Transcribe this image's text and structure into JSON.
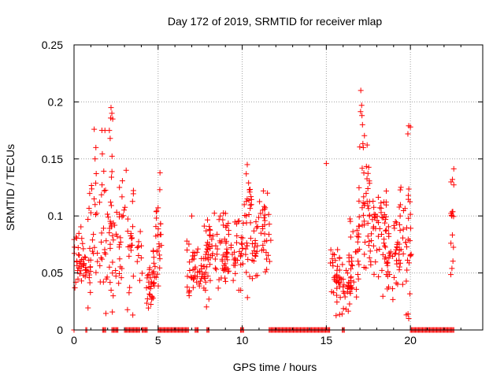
{
  "chart_data": {
    "type": "scatter",
    "title": "Day 172 of 2019, SRMTID for receiver mlap",
    "xlabel": "GPS time / hours",
    "ylabel": "SRMTID / TECUs",
    "xlim": [
      0,
      24.3
    ],
    "ylim": [
      0,
      0.25
    ],
    "xticks": [
      0,
      5,
      10,
      15,
      20
    ],
    "xtick_labels": [
      "0",
      "5",
      "10",
      "15",
      "20"
    ],
    "yticks": [
      0,
      0.05,
      0.1,
      0.15,
      0.2,
      0.25
    ],
    "ytick_labels": [
      "0",
      "0.05",
      "0.1",
      "0.15",
      "0.2",
      "0.25"
    ],
    "grid": true,
    "marker": "+",
    "color": "#ff0000",
    "clusters": [
      {
        "x": [
          0.0,
          0.6
        ],
        "y_mean": 0.062,
        "y_sd": 0.013,
        "n": 28
      },
      {
        "x": [
          0.4,
          1.0
        ],
        "y_mean": 0.05,
        "y_sd": 0.01,
        "n": 18
      },
      {
        "x": [
          0.8,
          1.6
        ],
        "y_mean": 0.085,
        "y_sd": 0.028,
        "n": 30
      },
      {
        "x": [
          1.6,
          2.3
        ],
        "y_mean": 0.1,
        "y_sd": 0.035,
        "n": 40
      },
      {
        "x": [
          2.2,
          3.0
        ],
        "y_mean": 0.08,
        "y_sd": 0.028,
        "n": 30
      },
      {
        "x": [
          3.0,
          3.6
        ],
        "y_mean": 0.07,
        "y_sd": 0.025,
        "n": 22
      },
      {
        "x": [
          3.6,
          4.1
        ],
        "y_mean": 0.07,
        "y_sd": 0.015,
        "n": 10
      },
      {
        "x": [
          4.3,
          4.8
        ],
        "y_mean": 0.038,
        "y_sd": 0.01,
        "n": 30
      },
      {
        "x": [
          4.7,
          5.2
        ],
        "y_mean": 0.07,
        "y_sd": 0.02,
        "n": 30
      },
      {
        "x": [
          6.7,
          8.0
        ],
        "y_mean": 0.055,
        "y_sd": 0.014,
        "n": 60
      },
      {
        "x": [
          7.8,
          9.2
        ],
        "y_mean": 0.068,
        "y_sd": 0.018,
        "n": 60
      },
      {
        "x": [
          8.8,
          10.0
        ],
        "y_mean": 0.07,
        "y_sd": 0.015,
        "n": 45
      },
      {
        "x": [
          10.0,
          11.0
        ],
        "y_mean": 0.075,
        "y_sd": 0.022,
        "n": 45
      },
      {
        "x": [
          10.2,
          10.6
        ],
        "y_mean": 0.12,
        "y_sd": 0.01,
        "n": 10
      },
      {
        "x": [
          11.0,
          11.7
        ],
        "y_mean": 0.085,
        "y_sd": 0.018,
        "n": 30
      },
      {
        "x": [
          15.2,
          15.8
        ],
        "y_mean": 0.055,
        "y_sd": 0.015,
        "n": 25
      },
      {
        "x": [
          15.6,
          16.5
        ],
        "y_mean": 0.038,
        "y_sd": 0.01,
        "n": 40
      },
      {
        "x": [
          16.3,
          17.0
        ],
        "y_mean": 0.065,
        "y_sd": 0.02,
        "n": 30
      },
      {
        "x": [
          16.9,
          17.6
        ],
        "y_mean": 0.115,
        "y_sd": 0.028,
        "n": 40
      },
      {
        "x": [
          17.5,
          18.6
        ],
        "y_mean": 0.085,
        "y_sd": 0.018,
        "n": 60
      },
      {
        "x": [
          18.5,
          19.4
        ],
        "y_mean": 0.068,
        "y_sd": 0.018,
        "n": 40
      },
      {
        "x": [
          19.3,
          20.1
        ],
        "y_mean": 0.075,
        "y_sd": 0.03,
        "n": 40
      },
      {
        "x": [
          22.4,
          22.6
        ],
        "y_mean": 0.095,
        "y_sd": 0.025,
        "n": 15
      }
    ],
    "extra_points": [
      [
        1.2,
        0.176
      ],
      [
        1.3,
        0.16
      ],
      [
        2.2,
        0.195
      ],
      [
        2.25,
        0.19
      ],
      [
        2.3,
        0.185
      ],
      [
        2.1,
        0.175
      ],
      [
        2.15,
        0.168
      ],
      [
        1.25,
        0.15
      ],
      [
        3.1,
        0.14
      ],
      [
        10.3,
        0.145
      ],
      [
        15.0,
        0.146
      ],
      [
        17.05,
        0.21
      ],
      [
        17.1,
        0.197
      ],
      [
        17.12,
        0.188
      ],
      [
        17.15,
        0.18
      ],
      [
        17.2,
        0.16
      ],
      [
        19.9,
        0.179
      ],
      [
        20.0,
        0.178
      ],
      [
        19.85,
        0.172
      ],
      [
        19.9,
        0.01
      ],
      [
        22.5,
        0.132
      ],
      [
        2.7,
        0.125
      ],
      [
        5.1,
        0.123
      ],
      [
        7.0,
        0.1
      ],
      [
        11.5,
        0.12
      ]
    ],
    "zero_segments": [
      [
        0.0,
        0.05
      ],
      [
        0.7,
        0.8
      ],
      [
        1.7,
        1.9
      ],
      [
        2.25,
        2.65
      ],
      [
        3.0,
        3.9
      ],
      [
        4.05,
        4.35
      ],
      [
        5.0,
        6.8
      ],
      [
        7.2,
        7.4
      ],
      [
        7.9,
        8.05
      ],
      [
        9.9,
        10.1
      ],
      [
        11.6,
        15.25
      ],
      [
        15.95,
        16.1
      ],
      [
        20.0,
        22.6
      ]
    ],
    "seed": 172
  }
}
